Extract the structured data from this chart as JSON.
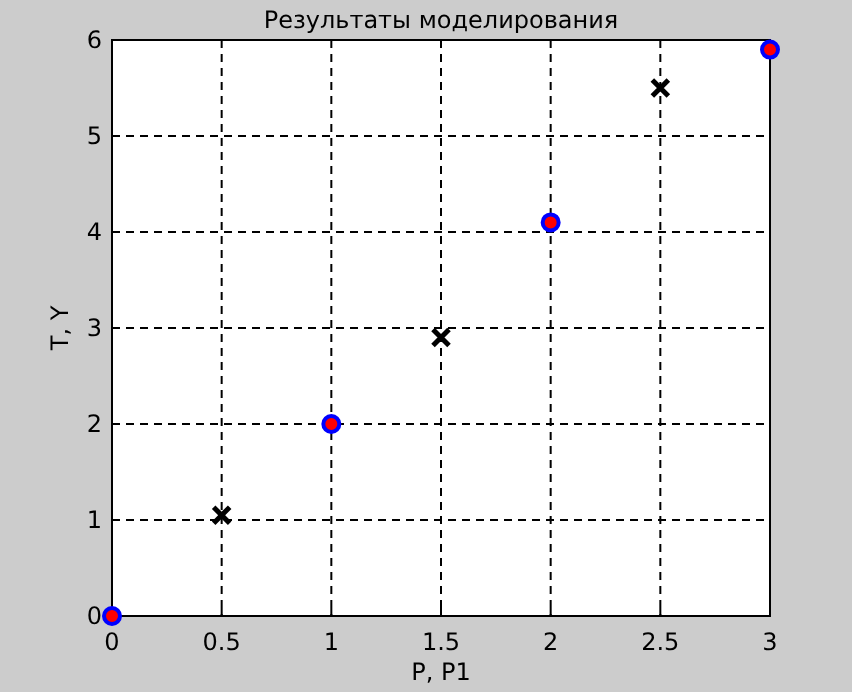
{
  "chart_data": {
    "type": "scatter",
    "title": "Результаты моделирования",
    "xlabel": "P, P1",
    "ylabel": "T, Y",
    "xlim": [
      0,
      3
    ],
    "xticks": [
      0,
      0.5,
      1,
      1.5,
      2,
      2.5,
      3
    ],
    "ylim": [
      0,
      6
    ],
    "yticks": [
      0,
      1,
      2,
      3,
      4,
      5,
      6
    ],
    "grid": true,
    "series": [
      {
        "color": "#ff0000",
        "marker": "circle",
        "x": [
          0,
          1,
          2,
          3
        ],
        "values": [
          0,
          2,
          4.1,
          5.9
        ]
      },
      {
        "color": "#000000",
        "marker": "cross",
        "x": [
          0.5,
          1.5,
          2.5
        ],
        "values": [
          1.05,
          2.9,
          5.5
        ]
      }
    ]
  }
}
